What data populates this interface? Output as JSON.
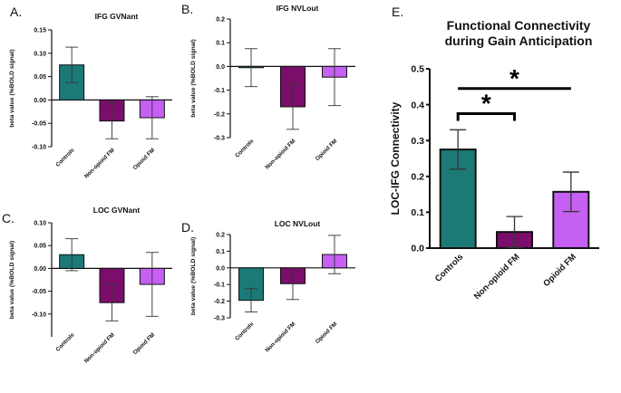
{
  "colors": {
    "controls": "#1b7a76",
    "nonopioid": "#7b0e6a",
    "opioid": "#c560f2",
    "axis": "#111111",
    "error": "#333333"
  },
  "chart_data": [
    {
      "panel": "A.",
      "type": "bar",
      "title": "IFG GVNant",
      "ylabel": "beta value (%BOLD signal)",
      "xlabel": "",
      "categories": [
        "Controls",
        "Non-opioid FM",
        "Opioid FM"
      ],
      "values": [
        0.075,
        -0.045,
        -0.038
      ],
      "errors": [
        0.038,
        0.038,
        0.045
      ],
      "ylim": [
        -0.1,
        0.15
      ],
      "yticks": [
        -0.1,
        -0.05,
        0,
        0.05,
        0.1,
        0.15
      ],
      "ytick_labels": [
        "-0.10",
        "-0.05",
        "0.00",
        "0.05",
        "0.10",
        "0.15"
      ]
    },
    {
      "panel": "B.",
      "type": "bar",
      "title": "IFG NVLout",
      "ylabel": "beta value (%BOLD signal)",
      "xlabel": "",
      "categories": [
        "Controls",
        "Non-opioid FM",
        "Opioid FM"
      ],
      "values": [
        -0.005,
        -0.17,
        -0.045
      ],
      "errors": [
        0.08,
        0.095,
        0.12
      ],
      "ylim": [
        -0.3,
        0.2
      ],
      "yticks": [
        -0.3,
        -0.2,
        -0.1,
        0,
        0.1,
        0.2
      ],
      "ytick_labels": [
        "-0.3",
        "-0.2",
        "-0.1",
        "0.0",
        "0.1",
        "0.2"
      ]
    },
    {
      "panel": "C.",
      "type": "bar",
      "title": "LOC GVNant",
      "ylabel": "beta value (%BOLD signal)",
      "xlabel": "",
      "categories": [
        "Controls",
        "Non-opioid FM",
        "Opioid FM"
      ],
      "values": [
        0.03,
        -0.075,
        -0.035
      ],
      "errors": [
        0.035,
        0.04,
        0.07
      ],
      "ylim": [
        -0.15,
        0.1
      ],
      "yticks": [
        -0.1,
        -0.05,
        0,
        0.05,
        0.1
      ],
      "ytick_labels": [
        "-0.10",
        "-0.05",
        "0.00",
        "0.05",
        "0.10"
      ]
    },
    {
      "panel": "D.",
      "type": "bar",
      "title": "LOC NVLout",
      "ylabel": "beta value (%BOLD signal)",
      "xlabel": "",
      "categories": [
        "Controls",
        "Non-opioid FM",
        "Opioid FM"
      ],
      "values": [
        -0.195,
        -0.095,
        0.08
      ],
      "errors": [
        0.07,
        0.095,
        0.115
      ],
      "ylim": [
        -0.3,
        0.2
      ],
      "yticks": [
        -0.3,
        -0.2,
        -0.1,
        0,
        0.1,
        0.2
      ],
      "ytick_labels": [
        "-0.3",
        "-0.2",
        "-0.1",
        "0.0",
        "0.1",
        "0.2"
      ]
    },
    {
      "panel": "E.",
      "type": "bar",
      "title": "Functional Connectivity during Gain Anticipation",
      "title_lines": [
        "Functional Connectivity",
        "during Gain Anticipation"
      ],
      "ylabel": "LOC-IFG Connectivity",
      "xlabel": "",
      "categories": [
        "Controls",
        "Non-opioid FM",
        "Opioid FM"
      ],
      "values": [
        0.275,
        0.045,
        0.157
      ],
      "errors": [
        0.055,
        0.043,
        0.055
      ],
      "ylim": [
        0,
        0.5
      ],
      "yticks": [
        0,
        0.1,
        0.2,
        0.3,
        0.4,
        0.5
      ],
      "ytick_labels": [
        "0.0",
        "0.1",
        "0.2",
        "0.3",
        "0.4",
        "0.5"
      ],
      "significance": [
        {
          "from": 0,
          "to": 1,
          "label": "*"
        },
        {
          "from": 0,
          "to": 2,
          "label": "*"
        }
      ]
    }
  ]
}
